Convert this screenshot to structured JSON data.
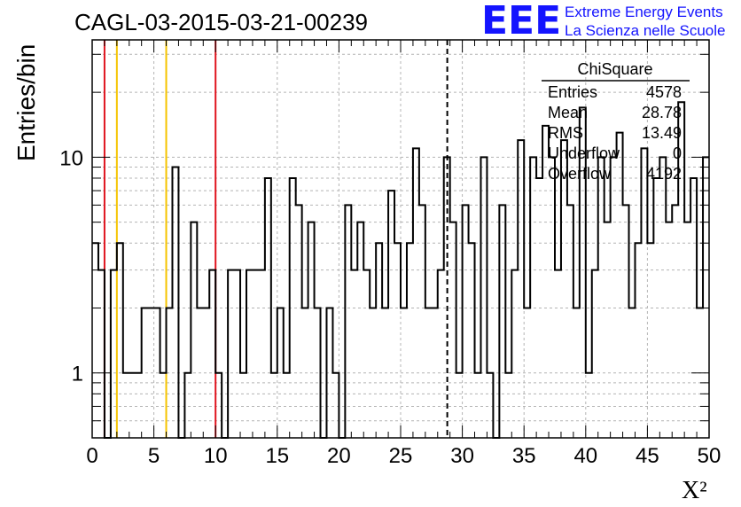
{
  "header": {
    "title": "CAGL-03-2015-03-21-00239",
    "logo_text": "EEE",
    "tagline_1": "Extreme Energy Events",
    "tagline_2": "La Scienza nelle Scuole"
  },
  "colors": {
    "logo": "#1414ff",
    "histogram": "#000000",
    "red_marker": "#e0141e",
    "yellow_marker": "#f5c400",
    "grid": "#b4b4b4"
  },
  "stats_box": {
    "name": "ChiSquare",
    "rows": [
      {
        "label": "Entries",
        "value": "4578"
      },
      {
        "label": "Mean",
        "value": "28.78"
      },
      {
        "label": "RMS",
        "value": "13.49"
      },
      {
        "label": "Underflow",
        "value": "0"
      },
      {
        "label": "Overflow",
        "value": "4192"
      }
    ]
  },
  "chart_data": {
    "type": "histogram",
    "title": "CAGL-03-2015-03-21-00239",
    "xlabel": "X²",
    "ylabel": "Entries/bin",
    "xlim": [
      0,
      50
    ],
    "ylim": [
      0.5,
      35
    ],
    "y_scale": "log",
    "grid": true,
    "bin_width": 0.5,
    "x_ticks": [
      0,
      5,
      10,
      15,
      20,
      25,
      30,
      35,
      40,
      45,
      50
    ],
    "x_tick_labels": [
      "0",
      "5",
      "10",
      "15",
      "20",
      "25",
      "30",
      "35",
      "40",
      "45",
      "50"
    ],
    "y_ticks": [
      1,
      10
    ],
    "y_tick_labels": [
      "1",
      "10"
    ],
    "counts": [
      4,
      3,
      0,
      3,
      4,
      1,
      1,
      1,
      2,
      2,
      2,
      1,
      2,
      9,
      0,
      1,
      5,
      2,
      2,
      3,
      1,
      0,
      3,
      3,
      1,
      3,
      3,
      3,
      8,
      1,
      2,
      1,
      8,
      6,
      2,
      5,
      2,
      0,
      2,
      1,
      0,
      6,
      3,
      5,
      3,
      2,
      4,
      2,
      7,
      4,
      2,
      4,
      11,
      6,
      2,
      2,
      3,
      10,
      5,
      1,
      6,
      4,
      1,
      10,
      1,
      0,
      6,
      1,
      3,
      12,
      2,
      10,
      8,
      14,
      10,
      3,
      12,
      6,
      2,
      17,
      1,
      3,
      10,
      5,
      10,
      13,
      6,
      2,
      4,
      11,
      4,
      8,
      10,
      5,
      6,
      18,
      5,
      8,
      2,
      10
    ],
    "vertical_markers": [
      {
        "x": 1,
        "color": "red",
        "style": "solid"
      },
      {
        "x": 2,
        "color": "yellow",
        "style": "solid"
      },
      {
        "x": 6,
        "color": "yellow",
        "style": "solid"
      },
      {
        "x": 10,
        "color": "red",
        "style": "solid"
      },
      {
        "x": 28.78,
        "color": "black",
        "style": "dashed"
      }
    ]
  }
}
